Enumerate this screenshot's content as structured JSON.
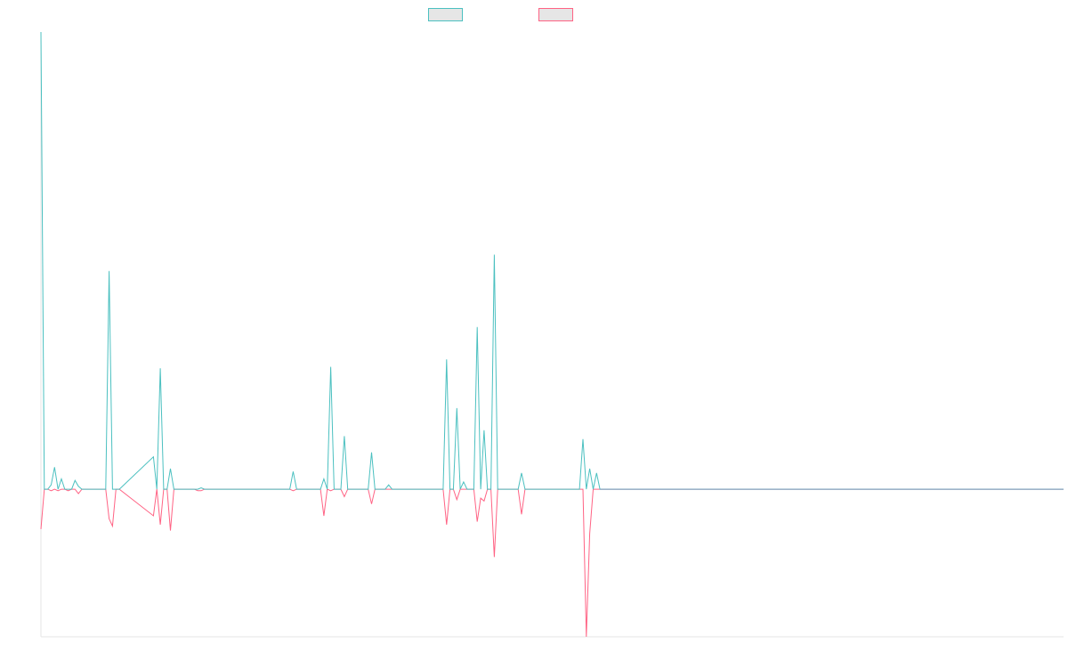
{
  "chart_data": {
    "type": "line",
    "title": "",
    "xlabel": "",
    "ylabel": "",
    "ylim": [
      -1.0,
      3.1
    ],
    "grid": false,
    "legend": "top-center",
    "series": [
      {
        "color": "#4bc0c0",
        "points": [
          [
            0,
            3.1
          ],
          [
            1,
            0
          ],
          [
            2,
            0
          ],
          [
            3,
            0.03
          ],
          [
            4,
            0.15
          ],
          [
            5,
            0
          ],
          [
            6,
            0.07
          ],
          [
            7,
            0
          ],
          [
            8,
            0
          ],
          [
            9,
            0
          ],
          [
            10,
            0.06
          ],
          [
            11,
            0.02
          ],
          [
            12,
            0
          ],
          [
            13,
            0
          ],
          [
            14,
            0
          ],
          [
            15,
            0
          ],
          [
            16,
            0
          ],
          [
            17,
            0
          ],
          [
            18,
            0
          ],
          [
            19,
            0
          ],
          [
            20,
            1.48
          ],
          [
            21,
            0
          ],
          [
            22,
            0
          ],
          [
            23,
            0
          ],
          [
            33,
            0.22
          ],
          [
            34,
            0
          ],
          [
            35,
            0.82
          ],
          [
            36,
            0
          ],
          [
            37,
            0
          ],
          [
            38,
            0.14
          ],
          [
            39,
            0
          ],
          [
            40,
            0
          ],
          [
            41,
            0
          ],
          [
            42,
            0
          ],
          [
            43,
            0
          ],
          [
            44,
            0
          ],
          [
            45,
            0
          ],
          [
            46,
            0
          ],
          [
            47,
            0.01
          ],
          [
            48,
            0
          ],
          [
            73,
            0
          ],
          [
            74,
            0.12
          ],
          [
            75,
            0
          ],
          [
            76,
            0
          ],
          [
            77,
            0
          ],
          [
            78,
            0
          ],
          [
            79,
            0
          ],
          [
            80,
            0
          ],
          [
            81,
            0
          ],
          [
            82,
            0
          ],
          [
            83,
            0.07
          ],
          [
            84,
            0
          ],
          [
            85,
            0.83
          ],
          [
            86,
            0
          ],
          [
            87,
            0
          ],
          [
            88,
            0
          ],
          [
            89,
            0.36
          ],
          [
            90,
            0
          ],
          [
            91,
            0
          ],
          [
            92,
            0
          ],
          [
            93,
            0
          ],
          [
            94,
            0
          ],
          [
            95,
            0
          ],
          [
            96,
            0
          ],
          [
            97,
            0.25
          ],
          [
            98,
            0
          ],
          [
            99,
            0
          ],
          [
            100,
            0
          ],
          [
            101,
            0
          ],
          [
            102,
            0.03
          ],
          [
            103,
            0
          ],
          [
            118,
            0
          ],
          [
            119,
            0.88
          ],
          [
            120,
            0
          ],
          [
            121,
            0
          ],
          [
            122,
            0.55
          ],
          [
            123,
            0
          ],
          [
            124,
            0.05
          ],
          [
            125,
            0
          ],
          [
            126,
            0
          ],
          [
            127,
            0
          ],
          [
            128,
            1.1
          ],
          [
            129,
            0
          ],
          [
            130,
            0.4
          ],
          [
            131,
            0
          ],
          [
            132,
            0
          ],
          [
            133,
            1.59
          ],
          [
            134,
            0
          ],
          [
            135,
            0
          ],
          [
            136,
            0
          ],
          [
            137,
            0
          ],
          [
            138,
            0
          ],
          [
            139,
            0
          ],
          [
            140,
            0
          ],
          [
            141,
            0.11
          ],
          [
            142,
            0
          ],
          [
            148,
            0
          ],
          [
            149,
            0
          ],
          [
            150,
            0
          ],
          [
            151,
            0
          ],
          [
            152,
            0
          ],
          [
            153,
            0
          ],
          [
            154,
            0
          ],
          [
            155,
            0
          ],
          [
            156,
            0
          ],
          [
            157,
            0
          ],
          [
            158,
            0
          ],
          [
            159,
            0.34
          ],
          [
            160,
            0
          ],
          [
            161,
            0.14
          ],
          [
            162,
            0
          ],
          [
            163,
            0.11
          ],
          [
            164,
            0
          ],
          [
            300,
            0
          ]
        ]
      },
      {
        "color": "#ff6384",
        "points": [
          [
            0,
            -0.27
          ],
          [
            1,
            0
          ],
          [
            2,
            0
          ],
          [
            3,
            -0.01
          ],
          [
            4,
            0
          ],
          [
            5,
            -0.01
          ],
          [
            6,
            0
          ],
          [
            7,
            0
          ],
          [
            8,
            -0.01
          ],
          [
            9,
            0
          ],
          [
            10,
            0
          ],
          [
            11,
            -0.03
          ],
          [
            12,
            0
          ],
          [
            13,
            0
          ],
          [
            14,
            0
          ],
          [
            15,
            0
          ],
          [
            16,
            0
          ],
          [
            17,
            0
          ],
          [
            18,
            0
          ],
          [
            19,
            0
          ],
          [
            20,
            -0.2
          ],
          [
            21,
            -0.25
          ],
          [
            22,
            0
          ],
          [
            23,
            0
          ],
          [
            33,
            -0.18
          ],
          [
            34,
            0
          ],
          [
            35,
            -0.24
          ],
          [
            36,
            0
          ],
          [
            37,
            0
          ],
          [
            38,
            -0.28
          ],
          [
            39,
            0
          ],
          [
            40,
            0
          ],
          [
            41,
            0
          ],
          [
            42,
            0
          ],
          [
            43,
            0
          ],
          [
            44,
            0
          ],
          [
            45,
            0
          ],
          [
            46,
            -0.01
          ],
          [
            47,
            -0.01
          ],
          [
            48,
            0
          ],
          [
            73,
            0
          ],
          [
            74,
            -0.01
          ],
          [
            75,
            0
          ],
          [
            76,
            0
          ],
          [
            77,
            0
          ],
          [
            78,
            0
          ],
          [
            79,
            0
          ],
          [
            80,
            0
          ],
          [
            81,
            0
          ],
          [
            82,
            0
          ],
          [
            83,
            -0.18
          ],
          [
            84,
            0
          ],
          [
            85,
            -0.01
          ],
          [
            86,
            0
          ],
          [
            87,
            0
          ],
          [
            88,
            0
          ],
          [
            89,
            -0.05
          ],
          [
            90,
            0
          ],
          [
            91,
            0
          ],
          [
            92,
            0
          ],
          [
            93,
            0
          ],
          [
            94,
            0
          ],
          [
            95,
            0
          ],
          [
            96,
            0
          ],
          [
            97,
            -0.1
          ],
          [
            98,
            0
          ],
          [
            99,
            0
          ],
          [
            100,
            0
          ],
          [
            101,
            0
          ],
          [
            102,
            0
          ],
          [
            103,
            0
          ],
          [
            118,
            0
          ],
          [
            119,
            -0.24
          ],
          [
            120,
            0
          ],
          [
            121,
            0
          ],
          [
            122,
            -0.07
          ],
          [
            123,
            0
          ],
          [
            124,
            0
          ],
          [
            125,
            0
          ],
          [
            126,
            0
          ],
          [
            127,
            0
          ],
          [
            128,
            -0.22
          ],
          [
            129,
            -0.06
          ],
          [
            130,
            -0.08
          ],
          [
            131,
            0
          ],
          [
            132,
            0
          ],
          [
            133,
            -0.46
          ],
          [
            134,
            0
          ],
          [
            135,
            0
          ],
          [
            136,
            0
          ],
          [
            137,
            0
          ],
          [
            138,
            0
          ],
          [
            139,
            0
          ],
          [
            140,
            0
          ],
          [
            141,
            -0.17
          ],
          [
            142,
            0
          ],
          [
            148,
            0
          ],
          [
            149,
            0
          ],
          [
            150,
            0
          ],
          [
            151,
            0
          ],
          [
            152,
            0
          ],
          [
            153,
            0
          ],
          [
            154,
            0
          ],
          [
            155,
            0
          ],
          [
            156,
            0
          ],
          [
            157,
            0
          ],
          [
            158,
            0
          ],
          [
            159,
            0
          ],
          [
            160,
            -1.0
          ],
          [
            161,
            -0.3
          ],
          [
            162,
            0
          ],
          [
            163,
            0
          ],
          [
            164,
            0
          ],
          [
            300,
            0
          ]
        ]
      }
    ]
  }
}
